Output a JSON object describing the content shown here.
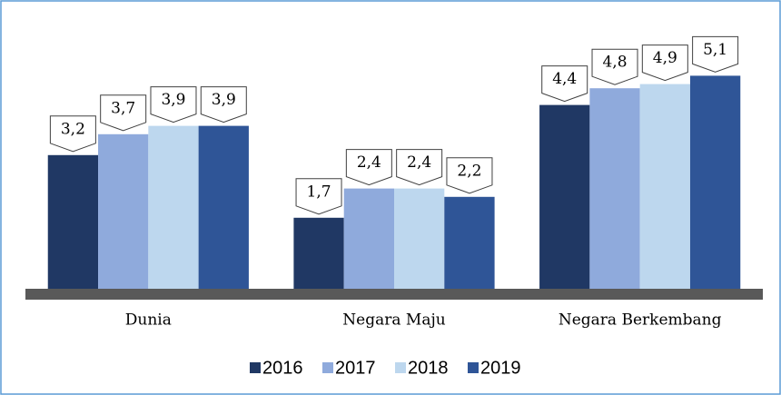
{
  "chart_data": {
    "type": "bar",
    "categories": [
      "Dunia",
      "Negara Maju",
      "Negara Berkembang"
    ],
    "series": [
      {
        "name": "2016",
        "color": "#203864",
        "values": [
          3.2,
          1.7,
          4.4
        ],
        "value_labels": [
          "3,2",
          "1,7",
          "4,4"
        ]
      },
      {
        "name": "2017",
        "color": "#8faadc",
        "values": [
          3.7,
          2.4,
          4.8
        ],
        "value_labels": [
          "3,7",
          "2,4",
          "4,8"
        ]
      },
      {
        "name": "2018",
        "color": "#bdd7ee",
        "values": [
          3.9,
          2.4,
          4.9
        ],
        "value_labels": [
          "3,9",
          "2,4",
          "4,9"
        ]
      },
      {
        "name": "2019",
        "color": "#2f5597",
        "values": [
          3.9,
          2.2,
          5.1
        ],
        "value_labels": [
          "3,9",
          "2,2",
          "5,1"
        ]
      }
    ],
    "ylim": [
      0,
      6
    ],
    "legend": "bottom"
  }
}
